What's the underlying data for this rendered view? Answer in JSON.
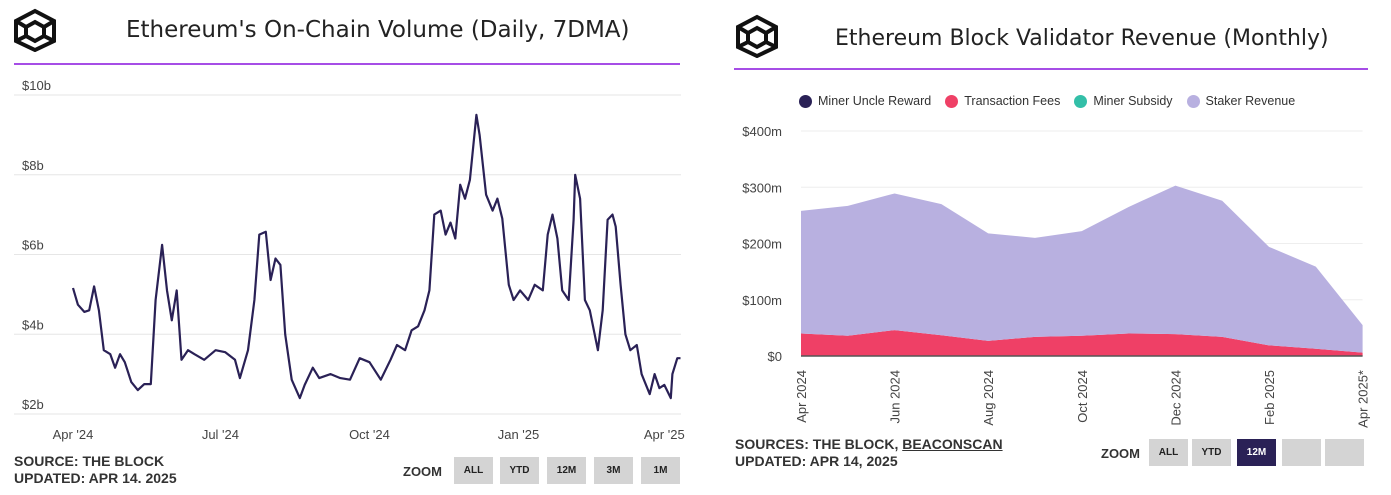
{
  "left_chart": {
    "source": "SOURCE: THE BLOCK",
    "updated": "UPDATED: APR 14. 2025",
    "zoom_label": "ZOOM",
    "zoom_buttons": [
      "ALL",
      "YTD",
      "12M",
      "3M",
      "1M"
    ],
    "chart_data": {
      "type": "line",
      "title": "Ethereum's On-Chain Volume (Daily, 7DMA)",
      "xlabel": "",
      "ylabel": "",
      "x_ticks": [
        [
          "2024-04-01",
          "Apr '24"
        ],
        [
          "2024-07-01",
          "Jul '24"
        ],
        [
          "2024-10-01",
          "Oct '24"
        ],
        [
          "2025-01-01",
          "Jan '25"
        ],
        [
          "2025-04-01",
          "Apr '25"
        ]
      ],
      "y_ticks": [
        [
          2,
          "$2b"
        ],
        [
          4,
          "$4b"
        ],
        [
          6,
          "$6b"
        ],
        [
          8,
          "$8b"
        ],
        [
          10,
          "$10b"
        ]
      ],
      "ylim": [
        2,
        10
      ],
      "xlim": [
        "2024-04-01",
        "2025-04-11"
      ],
      "grid": "horizontal",
      "color": "#2a2156",
      "points": [
        [
          "2024-04-01",
          5.16
        ],
        [
          "2024-04-04",
          4.74
        ],
        [
          "2024-04-08",
          4.56
        ],
        [
          "2024-04-11",
          4.6
        ],
        [
          "2024-04-14",
          5.2
        ],
        [
          "2024-04-17",
          4.6
        ],
        [
          "2024-04-20",
          3.6
        ],
        [
          "2024-04-24",
          3.5
        ],
        [
          "2024-04-27",
          3.16
        ],
        [
          "2024-04-30",
          3.5
        ],
        [
          "2024-05-03",
          3.3
        ],
        [
          "2024-05-07",
          2.8
        ],
        [
          "2024-05-11",
          2.6
        ],
        [
          "2024-05-15",
          2.75
        ],
        [
          "2024-05-19",
          2.75
        ],
        [
          "2024-05-22",
          4.86
        ],
        [
          "2024-05-26",
          6.24
        ],
        [
          "2024-05-29",
          5.1
        ],
        [
          "2024-06-01",
          4.35
        ],
        [
          "2024-06-04",
          5.1
        ],
        [
          "2024-06-07",
          3.36
        ],
        [
          "2024-06-11",
          3.6
        ],
        [
          "2024-06-15",
          3.5
        ],
        [
          "2024-06-21",
          3.36
        ],
        [
          "2024-06-28",
          3.6
        ],
        [
          "2024-07-04",
          3.55
        ],
        [
          "2024-07-10",
          3.36
        ],
        [
          "2024-07-13",
          2.9
        ],
        [
          "2024-07-18",
          3.6
        ],
        [
          "2024-07-22",
          4.86
        ],
        [
          "2024-07-25",
          6.5
        ],
        [
          "2024-07-29",
          6.57
        ],
        [
          "2024-08-01",
          5.36
        ],
        [
          "2024-08-04",
          5.9
        ],
        [
          "2024-08-07",
          5.74
        ],
        [
          "2024-08-10",
          4.0
        ],
        [
          "2024-08-14",
          2.86
        ],
        [
          "2024-08-19",
          2.4
        ],
        [
          "2024-08-22",
          2.73
        ],
        [
          "2024-08-27",
          3.16
        ],
        [
          "2024-08-31",
          2.9
        ],
        [
          "2024-09-07",
          3.0
        ],
        [
          "2024-09-13",
          2.9
        ],
        [
          "2024-09-19",
          2.86
        ],
        [
          "2024-09-25",
          3.4
        ],
        [
          "2024-10-01",
          3.3
        ],
        [
          "2024-10-08",
          2.86
        ],
        [
          "2024-10-14",
          3.36
        ],
        [
          "2024-10-18",
          3.73
        ],
        [
          "2024-10-23",
          3.6
        ],
        [
          "2024-10-27",
          4.1
        ],
        [
          "2024-10-31",
          4.2
        ],
        [
          "2024-11-04",
          4.6
        ],
        [
          "2024-11-07",
          5.1
        ],
        [
          "2024-11-10",
          7.0
        ],
        [
          "2024-11-14",
          7.1
        ],
        [
          "2024-11-17",
          6.5
        ],
        [
          "2024-11-20",
          6.8
        ],
        [
          "2024-11-23",
          6.4
        ],
        [
          "2024-11-26",
          7.75
        ],
        [
          "2024-11-29",
          7.4
        ],
        [
          "2024-12-02",
          7.87
        ],
        [
          "2024-12-06",
          9.5
        ],
        [
          "2024-12-08",
          9.0
        ],
        [
          "2024-12-12",
          7.5
        ],
        [
          "2024-12-16",
          7.1
        ],
        [
          "2024-12-19",
          7.4
        ],
        [
          "2024-12-22",
          6.9
        ],
        [
          "2024-12-26",
          5.24
        ],
        [
          "2024-12-29",
          4.86
        ],
        [
          "2025-01-02",
          5.1
        ],
        [
          "2025-01-07",
          4.86
        ],
        [
          "2025-01-11",
          5.24
        ],
        [
          "2025-01-16",
          5.1
        ],
        [
          "2025-01-19",
          6.5
        ],
        [
          "2025-01-22",
          7.0
        ],
        [
          "2025-01-25",
          6.4
        ],
        [
          "2025-01-28",
          5.1
        ],
        [
          "2025-02-01",
          4.86
        ],
        [
          "2025-02-04",
          6.87
        ],
        [
          "2025-02-05",
          8.0
        ],
        [
          "2025-02-08",
          7.4
        ],
        [
          "2025-02-11",
          4.86
        ],
        [
          "2025-02-14",
          4.6
        ],
        [
          "2025-02-19",
          3.6
        ],
        [
          "2025-02-22",
          4.6
        ],
        [
          "2025-02-25",
          6.87
        ],
        [
          "2025-02-28",
          7.0
        ],
        [
          "2025-03-02",
          6.7
        ],
        [
          "2025-03-05",
          5.24
        ],
        [
          "2025-03-08",
          4.0
        ],
        [
          "2025-03-11",
          3.6
        ],
        [
          "2025-03-15",
          3.73
        ],
        [
          "2025-03-18",
          3.0
        ],
        [
          "2025-03-23",
          2.5
        ],
        [
          "2025-03-26",
          3.0
        ],
        [
          "2025-03-29",
          2.65
        ],
        [
          "2025-04-01",
          2.73
        ],
        [
          "2025-04-05",
          2.4
        ],
        [
          "2025-04-06",
          3.0
        ],
        [
          "2025-04-09",
          3.4
        ],
        [
          "2025-04-11",
          3.4
        ]
      ]
    }
  },
  "right_chart": {
    "source_prefix": "SOURCES: THE BLOCK, ",
    "source_link": "BEACONSCAN",
    "updated": "UPDATED: APR 14, 2025",
    "zoom_label": "ZOOM",
    "zoom_buttons": [
      "ALL",
      "YTD",
      "12M",
      "",
      ""
    ],
    "zoom_selected": "12M",
    "chart_data": {
      "type": "area",
      "stacked": true,
      "title": "Ethereum Block Validator Revenue (Monthly)",
      "xlabel": "",
      "ylabel": "",
      "categories": [
        "Apr 2024",
        "May 2024",
        "Jun 2024",
        "Jul 2024",
        "Aug 2024",
        "Sep 2024",
        "Oct 2024",
        "Nov 2024",
        "Dec 2024",
        "Jan 2025",
        "Feb 2025",
        "Mar 2025",
        "Apr 2025*"
      ],
      "x_tick_labels": [
        "Apr 2024",
        "",
        "Jun 2024",
        "",
        "Aug 2024",
        "",
        "Oct 2024",
        "",
        "Dec 2024",
        "",
        "Feb 2025",
        "",
        "Apr 2025*"
      ],
      "y_ticks": [
        [
          0,
          "$0"
        ],
        [
          100,
          "$100m"
        ],
        [
          200,
          "$200m"
        ],
        [
          300,
          "$300m"
        ],
        [
          400,
          "$400m"
        ]
      ],
      "ylim": [
        0,
        400
      ],
      "unit": "USD millions",
      "grid": "horizontal",
      "legend_position": "top",
      "series": [
        {
          "name": "Miner Uncle Reward",
          "color": "#2a2156",
          "values": [
            0,
            0,
            0,
            0,
            0,
            0,
            0,
            0,
            0,
            0,
            0,
            0,
            0
          ]
        },
        {
          "name": "Transaction Fees",
          "color": "#ef4066",
          "values": [
            40,
            36,
            46,
            37,
            27,
            34,
            36,
            40,
            39,
            34,
            19,
            13,
            6
          ]
        },
        {
          "name": "Miner Subsidy",
          "color": "#33bfa8",
          "values": [
            0,
            0,
            0,
            0,
            0,
            0,
            0,
            0,
            0,
            0,
            0,
            0,
            0
          ]
        },
        {
          "name": "Staker Revenue",
          "color": "#b8b0e0",
          "values": [
            218,
            231,
            243,
            233,
            191,
            176,
            186,
            225,
            264,
            242,
            175,
            146,
            49
          ]
        }
      ]
    }
  }
}
